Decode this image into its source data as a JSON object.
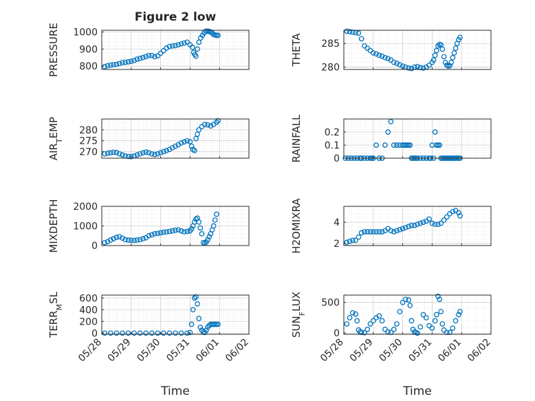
{
  "figure": {
    "title": "Figure 2 low",
    "xlabel": "Time",
    "x_tick_labels": [
      "05/28",
      "05/29",
      "05/30",
      "05/31",
      "06/01",
      "06/02"
    ],
    "marker_color": "#0072BD",
    "grid": "on (major + minor dotted)"
  },
  "chart_data": [
    {
      "type": "scatter",
      "ylabel": "PRESSURE",
      "ylim": [
        780,
        1010
      ],
      "yticks": [
        800,
        900,
        1000
      ],
      "series": [
        {
          "x": [
            0.1,
            0.2,
            0.3,
            0.4,
            0.5,
            0.6,
            0.7,
            0.8,
            0.9,
            1.0,
            1.1,
            1.2,
            1.3,
            1.4,
            1.5,
            1.6,
            1.7,
            1.8,
            1.9,
            2.0,
            2.1,
            2.2,
            2.3,
            2.4,
            2.5,
            2.6,
            2.7,
            2.8,
            2.9,
            3.0,
            3.08,
            3.12,
            3.16,
            3.2,
            3.25,
            3.3,
            3.36,
            3.42,
            3.48,
            3.54,
            3.6,
            3.65,
            3.7,
            3.75,
            3.8,
            3.85,
            3.9,
            3.95
          ],
          "y": [
            797,
            802,
            806,
            808,
            810,
            815,
            820,
            822,
            825,
            828,
            833,
            840,
            845,
            850,
            856,
            862,
            862,
            855,
            860,
            875,
            890,
            905,
            915,
            918,
            920,
            925,
            930,
            935,
            940,
            925,
            910,
            880,
            868,
            858,
            900,
            940,
            965,
            980,
            995,
            1005,
            1005,
            1003,
            1000,
            995,
            985,
            982,
            980,
            980
          ]
        }
      ]
    },
    {
      "type": "scatter",
      "ylabel": "THETA",
      "ylim": [
        279.5,
        287.8
      ],
      "yticks": [
        280,
        285
      ],
      "series": [
        {
          "x": [
            0.1,
            0.2,
            0.3,
            0.4,
            0.5,
            0.6,
            0.7,
            0.8,
            0.9,
            1.0,
            1.1,
            1.2,
            1.3,
            1.4,
            1.5,
            1.6,
            1.7,
            1.8,
            1.9,
            2.0,
            2.1,
            2.2,
            2.3,
            2.4,
            2.5,
            2.6,
            2.7,
            2.8,
            2.9,
            3.0,
            3.05,
            3.1,
            3.15,
            3.2,
            3.25,
            3.3,
            3.35,
            3.4,
            3.45,
            3.5,
            3.55,
            3.6,
            3.65,
            3.7,
            3.75,
            3.8,
            3.85,
            3.9,
            3.95
          ],
          "y": [
            287.6,
            287.5,
            287.4,
            287.3,
            287.2,
            286.0,
            284.5,
            284.0,
            283.5,
            283.0,
            282.8,
            282.5,
            282.3,
            282.0,
            281.8,
            281.5,
            281.0,
            280.8,
            280.5,
            280.2,
            280.0,
            279.8,
            279.7,
            280.0,
            280.1,
            279.9,
            279.8,
            280.0,
            280.4,
            281.0,
            281.5,
            282.5,
            283.5,
            284.5,
            284.8,
            284.7,
            283.8,
            282.2,
            281.0,
            280.4,
            280.2,
            280.3,
            281.0,
            282.0,
            283.0,
            284.0,
            285.0,
            285.8,
            286.3
          ]
        }
      ]
    },
    {
      "type": "scatter",
      "ylabel": "AIR_TEMP",
      "ylim": [
        267,
        285
      ],
      "yticks": [
        270,
        275,
        280
      ],
      "series": [
        {
          "x": [
            0.1,
            0.2,
            0.3,
            0.4,
            0.5,
            0.6,
            0.7,
            0.8,
            0.9,
            1.0,
            1.1,
            1.2,
            1.3,
            1.4,
            1.5,
            1.6,
            1.7,
            1.8,
            1.9,
            2.0,
            2.1,
            2.2,
            2.3,
            2.4,
            2.5,
            2.6,
            2.7,
            2.8,
            2.9,
            3.0,
            3.05,
            3.1,
            3.15,
            3.2,
            3.25,
            3.3,
            3.4,
            3.5,
            3.6,
            3.7,
            3.8,
            3.9,
            3.95
          ],
          "y": [
            269.0,
            269.3,
            269.5,
            269.7,
            269.6,
            269.0,
            268.5,
            268.0,
            267.8,
            267.7,
            268.0,
            268.5,
            269.0,
            269.5,
            269.8,
            269.5,
            269.0,
            268.7,
            269.0,
            269.5,
            270.0,
            270.5,
            271.0,
            271.8,
            272.5,
            273.2,
            274.0,
            274.5,
            275.0,
            274.6,
            272.5,
            271.0,
            270.5,
            276.0,
            278.0,
            280.0,
            281.5,
            282.5,
            282.3,
            281.8,
            282.5,
            283.5,
            284.2
          ]
        }
      ]
    },
    {
      "type": "scatter",
      "ylabel": "RAINFALL",
      "ylim": [
        0,
        0.3
      ],
      "yticks": [
        0,
        0.1,
        0.2
      ],
      "series": [
        {
          "x": [
            0.05,
            0.15,
            0.25,
            0.35,
            0.45,
            0.55,
            0.6,
            0.7,
            0.8,
            0.9,
            0.95,
            1.0,
            1.1,
            1.2,
            1.3,
            1.4,
            1.5,
            1.6,
            1.7,
            1.8,
            1.9,
            2.0,
            2.05,
            2.1,
            2.15,
            2.2,
            2.25,
            2.3,
            2.35,
            2.4,
            2.45,
            2.5,
            2.6,
            2.7,
            2.8,
            2.9,
            2.95,
            3.0,
            3.05,
            3.1,
            3.15,
            3.2,
            3.25,
            3.3,
            3.35,
            3.4,
            3.45,
            3.5,
            3.55,
            3.6,
            3.65,
            3.7,
            3.75,
            3.8,
            3.85,
            3.9,
            3.95
          ],
          "y": [
            0,
            0,
            0,
            0,
            0,
            0,
            0,
            0,
            0,
            0,
            0,
            0,
            0.1,
            0,
            0,
            0.1,
            0.2,
            0.28,
            0.1,
            0.1,
            0.1,
            0.1,
            0.1,
            0.1,
            0.1,
            0.1,
            0.1,
            0,
            0,
            0,
            0,
            0,
            0,
            0,
            0,
            0,
            0,
            0.1,
            0,
            0.2,
            0.1,
            0.1,
            0.1,
            0,
            0,
            0,
            0,
            0,
            0,
            0,
            0,
            0,
            0,
            0,
            0,
            0,
            0
          ]
        }
      ]
    },
    {
      "type": "scatter",
      "ylabel": "MIXDEPTH",
      "ylim": [
        0,
        2000
      ],
      "yticks": [
        0,
        1000,
        2000
      ],
      "series": [
        {
          "x": [
            0.1,
            0.2,
            0.3,
            0.4,
            0.5,
            0.6,
            0.7,
            0.8,
            0.9,
            1.0,
            1.1,
            1.2,
            1.3,
            1.4,
            1.5,
            1.6,
            1.7,
            1.8,
            1.9,
            2.0,
            2.1,
            2.2,
            2.3,
            2.4,
            2.5,
            2.6,
            2.7,
            2.8,
            2.9,
            3.0,
            3.05,
            3.1,
            3.15,
            3.2,
            3.25,
            3.3,
            3.35,
            3.4,
            3.45,
            3.5,
            3.55,
            3.6,
            3.65,
            3.7,
            3.75,
            3.8,
            3.85,
            3.9
          ],
          "y": [
            150,
            200,
            280,
            350,
            420,
            450,
            380,
            300,
            280,
            270,
            260,
            280,
            300,
            350,
            400,
            500,
            550,
            600,
            620,
            650,
            680,
            700,
            720,
            750,
            780,
            800,
            750,
            700,
            720,
            750,
            850,
            1000,
            1200,
            1350,
            1400,
            1200,
            900,
            600,
            150,
            120,
            180,
            300,
            450,
            600,
            800,
            1000,
            1300,
            1600
          ]
        }
      ]
    },
    {
      "type": "scatter",
      "ylabel": "H2OMIXRA",
      "ylim": [
        1.8,
        5.5
      ],
      "yticks": [
        2,
        4
      ],
      "series": [
        {
          "x": [
            0.1,
            0.2,
            0.3,
            0.4,
            0.5,
            0.6,
            0.7,
            0.8,
            0.9,
            1.0,
            1.1,
            1.2,
            1.3,
            1.4,
            1.5,
            1.6,
            1.7,
            1.8,
            1.9,
            2.0,
            2.1,
            2.2,
            2.3,
            2.4,
            2.5,
            2.6,
            2.7,
            2.8,
            2.9,
            3.0,
            3.1,
            3.2,
            3.3,
            3.4,
            3.5,
            3.6,
            3.7,
            3.8,
            3.9,
            3.95
          ],
          "y": [
            2.1,
            2.2,
            2.3,
            2.3,
            2.6,
            3.0,
            3.1,
            3.1,
            3.1,
            3.1,
            3.1,
            3.1,
            3.1,
            3.2,
            3.4,
            3.2,
            3.1,
            3.2,
            3.3,
            3.4,
            3.5,
            3.6,
            3.7,
            3.7,
            3.8,
            3.9,
            4.0,
            4.1,
            4.3,
            3.9,
            3.8,
            3.8,
            3.9,
            4.2,
            4.5,
            4.8,
            5.0,
            5.1,
            4.9,
            4.6
          ]
        }
      ]
    },
    {
      "type": "scatter",
      "ylabel": "TERR_MSL",
      "ylim": [
        -20,
        650
      ],
      "yticks": [
        0,
        200,
        400,
        600
      ],
      "series": [
        {
          "x": [
            0.1,
            0.3,
            0.5,
            0.7,
            0.9,
            1.1,
            1.3,
            1.5,
            1.7,
            1.9,
            2.1,
            2.3,
            2.5,
            2.7,
            2.9,
            3.0,
            3.05,
            3.1,
            3.15,
            3.2,
            3.25,
            3.3,
            3.35,
            3.4,
            3.45,
            3.5,
            3.55,
            3.6,
            3.65,
            3.7,
            3.75,
            3.8,
            3.85,
            3.9,
            3.95
          ],
          "y": [
            0,
            0,
            0,
            0,
            0,
            0,
            0,
            0,
            0,
            0,
            0,
            0,
            0,
            0,
            0,
            10,
            150,
            400,
            600,
            620,
            500,
            250,
            100,
            50,
            20,
            10,
            50,
            100,
            130,
            150,
            150,
            150,
            150,
            150,
            150
          ]
        }
      ]
    },
    {
      "type": "scatter",
      "ylabel": "SUN_FLUX",
      "ylim": [
        -20,
        620
      ],
      "yticks": [
        0,
        500
      ],
      "series": [
        {
          "x": [
            0.1,
            0.2,
            0.3,
            0.4,
            0.45,
            0.5,
            0.55,
            0.6,
            0.7,
            0.8,
            0.9,
            1.0,
            1.1,
            1.2,
            1.3,
            1.4,
            1.5,
            1.6,
            1.7,
            1.8,
            1.9,
            2.0,
            2.1,
            2.2,
            2.25,
            2.3,
            2.35,
            2.4,
            2.45,
            2.5,
            2.6,
            2.7,
            2.8,
            2.9,
            3.0,
            3.1,
            3.15,
            3.2,
            3.25,
            3.3,
            3.35,
            3.4,
            3.5,
            3.6,
            3.7,
            3.8,
            3.9,
            3.95
          ],
          "y": [
            150,
            250,
            330,
            310,
            200,
            50,
            20,
            10,
            5,
            60,
            150,
            200,
            250,
            280,
            200,
            60,
            20,
            10,
            60,
            150,
            350,
            500,
            550,
            540,
            450,
            200,
            60,
            20,
            10,
            0,
            100,
            300,
            250,
            120,
            80,
            200,
            300,
            600,
            550,
            350,
            150,
            50,
            10,
            10,
            80,
            200,
            300,
            350
          ]
        }
      ]
    }
  ]
}
